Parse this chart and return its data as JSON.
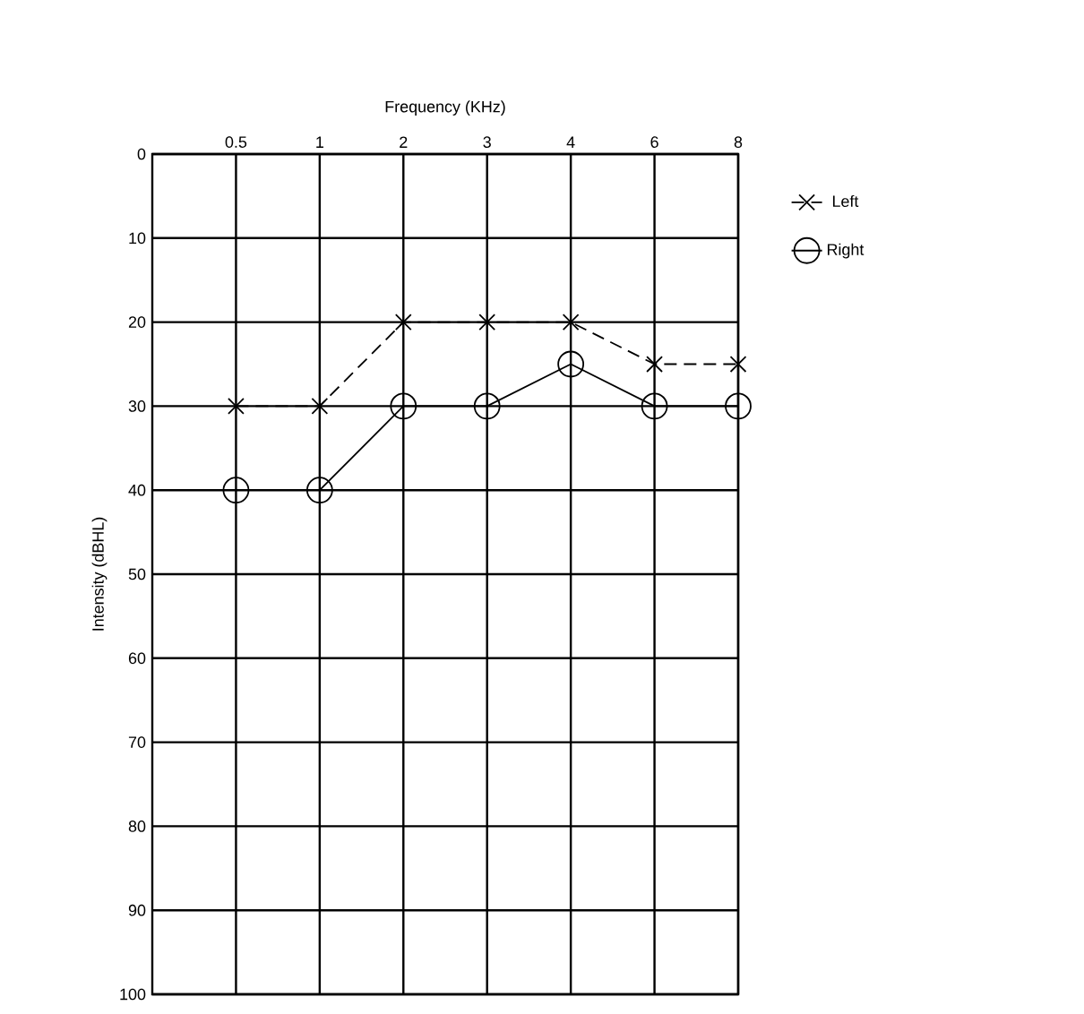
{
  "chart_data": {
    "type": "line",
    "xlabel": "Frequency (KHz)",
    "ylabel": "Intensity (dBHL)",
    "categories": [
      "0.5",
      "1",
      "2",
      "3",
      "4",
      "6",
      "8"
    ],
    "series": [
      {
        "name": "Left",
        "color": "#000000",
        "marker": "cross",
        "line_style": "dashed",
        "values": [
          30,
          30,
          20,
          20,
          20,
          25,
          25
        ]
      },
      {
        "name": "Right",
        "color": "#000000",
        "marker": "circle",
        "line_style": "solid",
        "values": [
          40,
          40,
          30,
          30,
          25,
          30,
          30
        ]
      }
    ],
    "ylim": [
      100,
      0
    ],
    "yticks": [
      0,
      10,
      20,
      30,
      40,
      50,
      60,
      70,
      80,
      90,
      100
    ],
    "grid": true,
    "legend": "top right"
  }
}
